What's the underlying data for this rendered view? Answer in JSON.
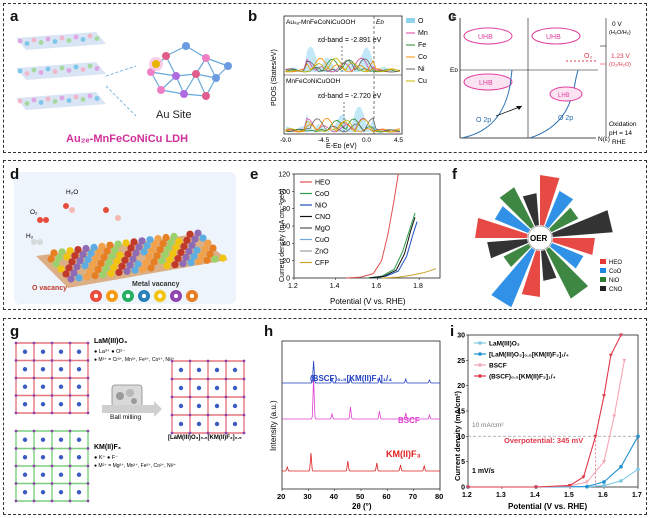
{
  "panels": {
    "a": {
      "label": "a",
      "caption": "Au Site",
      "title": "Au₂ₑ‐MnFeCoNiCu LDH"
    },
    "b": {
      "label": "b",
      "top_title": "Auₛₐ-MnFeCoNiCuOOH",
      "bottom_title": "MnFeCoNiCuOOH",
      "ef": "Eᴅ",
      "d_center_top": "εd-band = -2.891 eV",
      "d_center_bottom": "εd-band = -2.720 eV",
      "ylabel": "PDOS (States/eV)",
      "xlabel": "E-Eᴅ (eV)",
      "xticks": [
        "-9.0",
        "-4.5",
        "0.0",
        "4.5"
      ],
      "legend": [
        "O",
        "Mn",
        "Fe",
        "Co",
        "Ni",
        "Cu"
      ],
      "legend_colors": [
        "#8fd3ef",
        "#e040a0",
        "#2a8a2a",
        "#ff8c00",
        "#666666",
        "#c8b400"
      ]
    },
    "c": {
      "label": "c",
      "uhb": "UHB",
      "lhb": "LHB",
      "o2p": "O 2p",
      "o2": "O₂",
      "ev0": "0 V",
      "ev0_sub": "(H₂O/H₂)",
      "ev123": "1.23 V",
      "ev123_sub": "(O₂/H₂O)",
      "oxid": "Oxidation",
      "ph": "pH = 14",
      "rhe": "RHE",
      "e_axis": "E",
      "ef": "Eᴅ",
      "ne": "N(ε)"
    },
    "d": {
      "label": "d",
      "o_vac": "O vacancy",
      "m_vac": "Metal vacancy",
      "h2o": "H₂O",
      "o2": "O₂",
      "h2": "H₂"
    },
    "e": {
      "label": "e",
      "ylabel": "Current density (mA cm⁻²geo)",
      "xlabel": "Potential (V vs. RHE)",
      "legend": [
        "HEO",
        "CoO",
        "NiO",
        "CNO",
        "MgO",
        "CuO",
        "ZnO",
        "CFP"
      ],
      "legend_colors": [
        "#e05050",
        "#2a9d4a",
        "#1f4fbf",
        "#111111",
        "#555555",
        "#6fa8dc",
        "#9e9e9e",
        "#c9a227"
      ]
    },
    "f": {
      "label": "f",
      "center": "OER",
      "legend": [
        "HEO",
        "CoO",
        "NiO",
        "CNO"
      ],
      "legend_colors": [
        "#e53935",
        "#1e88e5",
        "#2e7d32",
        "#222222"
      ]
    },
    "g": {
      "label": "g",
      "top_formula": "LaM(III)O₃",
      "top_ions1": "● La³⁺   ● O²⁻",
      "top_ions2": "● M³⁺ = Cr³⁺, Mn³⁺, Fe³⁺, Co³⁺, Ni³⁺",
      "bottom_formula": "KM(II)F₃",
      "bottom_ions1": "● K⁺   ● F⁻",
      "bottom_ions2": "● M²⁺ = Mg²⁺, Mn²⁺, Fe²⁺, Co²⁺, Ni²⁺",
      "ball": "Ball milling",
      "product": "[LaM(III)O₃]₀.₅[KM(II)F₃]₀.₅"
    },
    "h": {
      "label": "h",
      "ylabel": "Intensity (a.u.)",
      "xlabel": "2θ (°)",
      "xticks": [
        "20",
        "30",
        "40",
        "50",
        "60",
        "70",
        "80"
      ],
      "s1": "(BSCF)₀.₅[KM(II)F₃]₁/₄",
      "s2": "BSCF",
      "s3": "KM(II)F₃"
    },
    "i": {
      "label": "i",
      "ylabel": "Current density (mA/cm²)",
      "xlabel": "Potential (V vs. RHE)",
      "xticks": [
        "1.2",
        "1.3",
        "1.4",
        "1.5",
        "1.6",
        "1.7"
      ],
      "yticks": [
        "0",
        "5",
        "10",
        "15",
        "20",
        "25",
        "30"
      ],
      "legend": [
        "LaM(III)O₃",
        "[LaM(III)O₃]₀.₅[KM(II)F₃]₁/₄",
        "BSCF",
        "(BSCF)₀.₅[KM(II)F₃]₁/₄"
      ],
      "legend_colors": [
        "#7ec8e3",
        "#1f8fd0",
        "#f4a6b4",
        "#e0384a"
      ],
      "ref": "10 mA/cm²",
      "over": "Overpotential: 345 mV",
      "rate": "1 mV/s"
    }
  },
  "chart_data": [
    {
      "type": "line",
      "title": "",
      "xlabel": "Potential (V vs. RHE)",
      "ylabel": "Current density (mA cm⁻²geo)",
      "xlim": [
        1.2,
        1.9
      ],
      "ylim": [
        0,
        120
      ],
      "series": [
        {
          "name": "HEO",
          "x": [
            1.45,
            1.52,
            1.58,
            1.62,
            1.65,
            1.68,
            1.7
          ],
          "y": [
            0,
            1,
            5,
            20,
            50,
            90,
            120
          ]
        },
        {
          "name": "CoO",
          "x": [
            1.55,
            1.62,
            1.68,
            1.72,
            1.76,
            1.78
          ],
          "y": [
            0,
            2,
            10,
            30,
            60,
            75
          ]
        },
        {
          "name": "NiO",
          "x": [
            1.57,
            1.64,
            1.7,
            1.74,
            1.77,
            1.79
          ],
          "y": [
            0,
            2,
            8,
            25,
            50,
            65
          ]
        },
        {
          "name": "CNO",
          "x": [
            1.56,
            1.63,
            1.69,
            1.73,
            1.76,
            1.78
          ],
          "y": [
            0,
            2,
            9,
            28,
            55,
            70
          ]
        },
        {
          "name": "CFP",
          "x": [
            1.62,
            1.7,
            1.76,
            1.82,
            1.86,
            1.88
          ],
          "y": [
            0,
            1,
            3,
            6,
            9,
            11
          ]
        }
      ]
    },
    {
      "type": "line",
      "title": "",
      "xlabel": "Potential (V vs. RHE)",
      "ylabel": "Current density (mA/cm²)",
      "xlim": [
        1.2,
        1.7
      ],
      "ylim": [
        0,
        30
      ],
      "series": [
        {
          "name": "LaM(III)O₃",
          "x": [
            1.2,
            1.4,
            1.55,
            1.6,
            1.65,
            1.7
          ],
          "y": [
            0,
            0,
            0,
            0.3,
            1.2,
            3.5
          ]
        },
        {
          "name": "[LaM(III)O₃]₀.₅[KM(II)F₃]₁/₄",
          "x": [
            1.2,
            1.4,
            1.55,
            1.6,
            1.65,
            1.7
          ],
          "y": [
            0,
            0,
            0.1,
            1,
            4,
            10
          ]
        },
        {
          "name": "BSCF",
          "x": [
            1.2,
            1.4,
            1.5,
            1.55,
            1.6,
            1.63,
            1.66
          ],
          "y": [
            0,
            0,
            0.2,
            1,
            5,
            14,
            25
          ]
        },
        {
          "name": "(BSCF)₀.₅[KM(II)F₃]₁/₄",
          "x": [
            1.2,
            1.4,
            1.5,
            1.54,
            1.575,
            1.6,
            1.62,
            1.65
          ],
          "y": [
            0,
            0,
            0.3,
            2,
            10,
            18,
            26,
            30
          ]
        }
      ]
    }
  ]
}
